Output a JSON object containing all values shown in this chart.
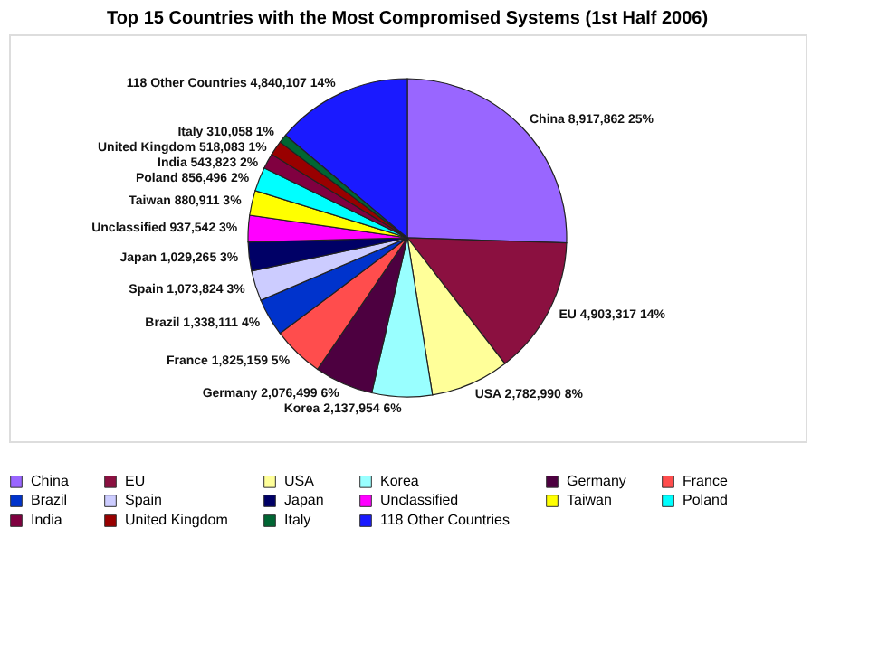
{
  "chart_data": {
    "type": "pie",
    "title": "Top 15 Countries with the Most Compromised Systems (1st Half 2006)",
    "categories": [
      "China",
      "EU",
      "USA",
      "Korea",
      "Germany",
      "France",
      "Brazil",
      "Spain",
      "Japan",
      "Unclassified",
      "Taiwan",
      "Poland",
      "India",
      "United Kingdom",
      "Italy",
      "118 Other Countries"
    ],
    "values": [
      8917862,
      4903317,
      2782990,
      2137954,
      2076499,
      1825159,
      1338111,
      1073824,
      1029265,
      937542,
      880911,
      856496,
      543823,
      518083,
      310058,
      4840107
    ],
    "value_labels": [
      "8,917,862 25%",
      "4,903,317 14%",
      "2,782,990 8%",
      "2,137,954 6%",
      "2,076,499 6%",
      "1,825,159 5%",
      "1,338,111 4%",
      "1,073,824 3%",
      "1,029,265 3%",
      "937,542 3%",
      "880,911 3%",
      "856,496 2%",
      "543,823 2%",
      "518,083 1%",
      "310,058 1%",
      "4,840,107 14%"
    ],
    "colors": [
      "#9966ff",
      "#8b1040",
      "#ffff99",
      "#99ffff",
      "#4d0040",
      "#ff4d4d",
      "#0033cc",
      "#ccccff",
      "#000066",
      "#ff00ff",
      "#ffff00",
      "#00ffff",
      "#800040",
      "#990000",
      "#006633",
      "#1a1aff"
    ],
    "legend": "bottom"
  }
}
